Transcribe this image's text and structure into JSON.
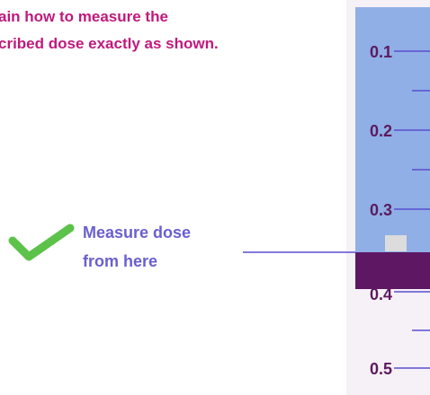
{
  "header": {
    "lines": [
      "ain how to measure the",
      "cribed dose exactly as shown."
    ]
  },
  "syringe": {
    "scale_labels": [
      "0.1",
      "0.2",
      "0.3",
      "0.4",
      "0.5"
    ]
  },
  "callout": {
    "lines": [
      "Measure dose",
      "from here"
    ]
  }
}
